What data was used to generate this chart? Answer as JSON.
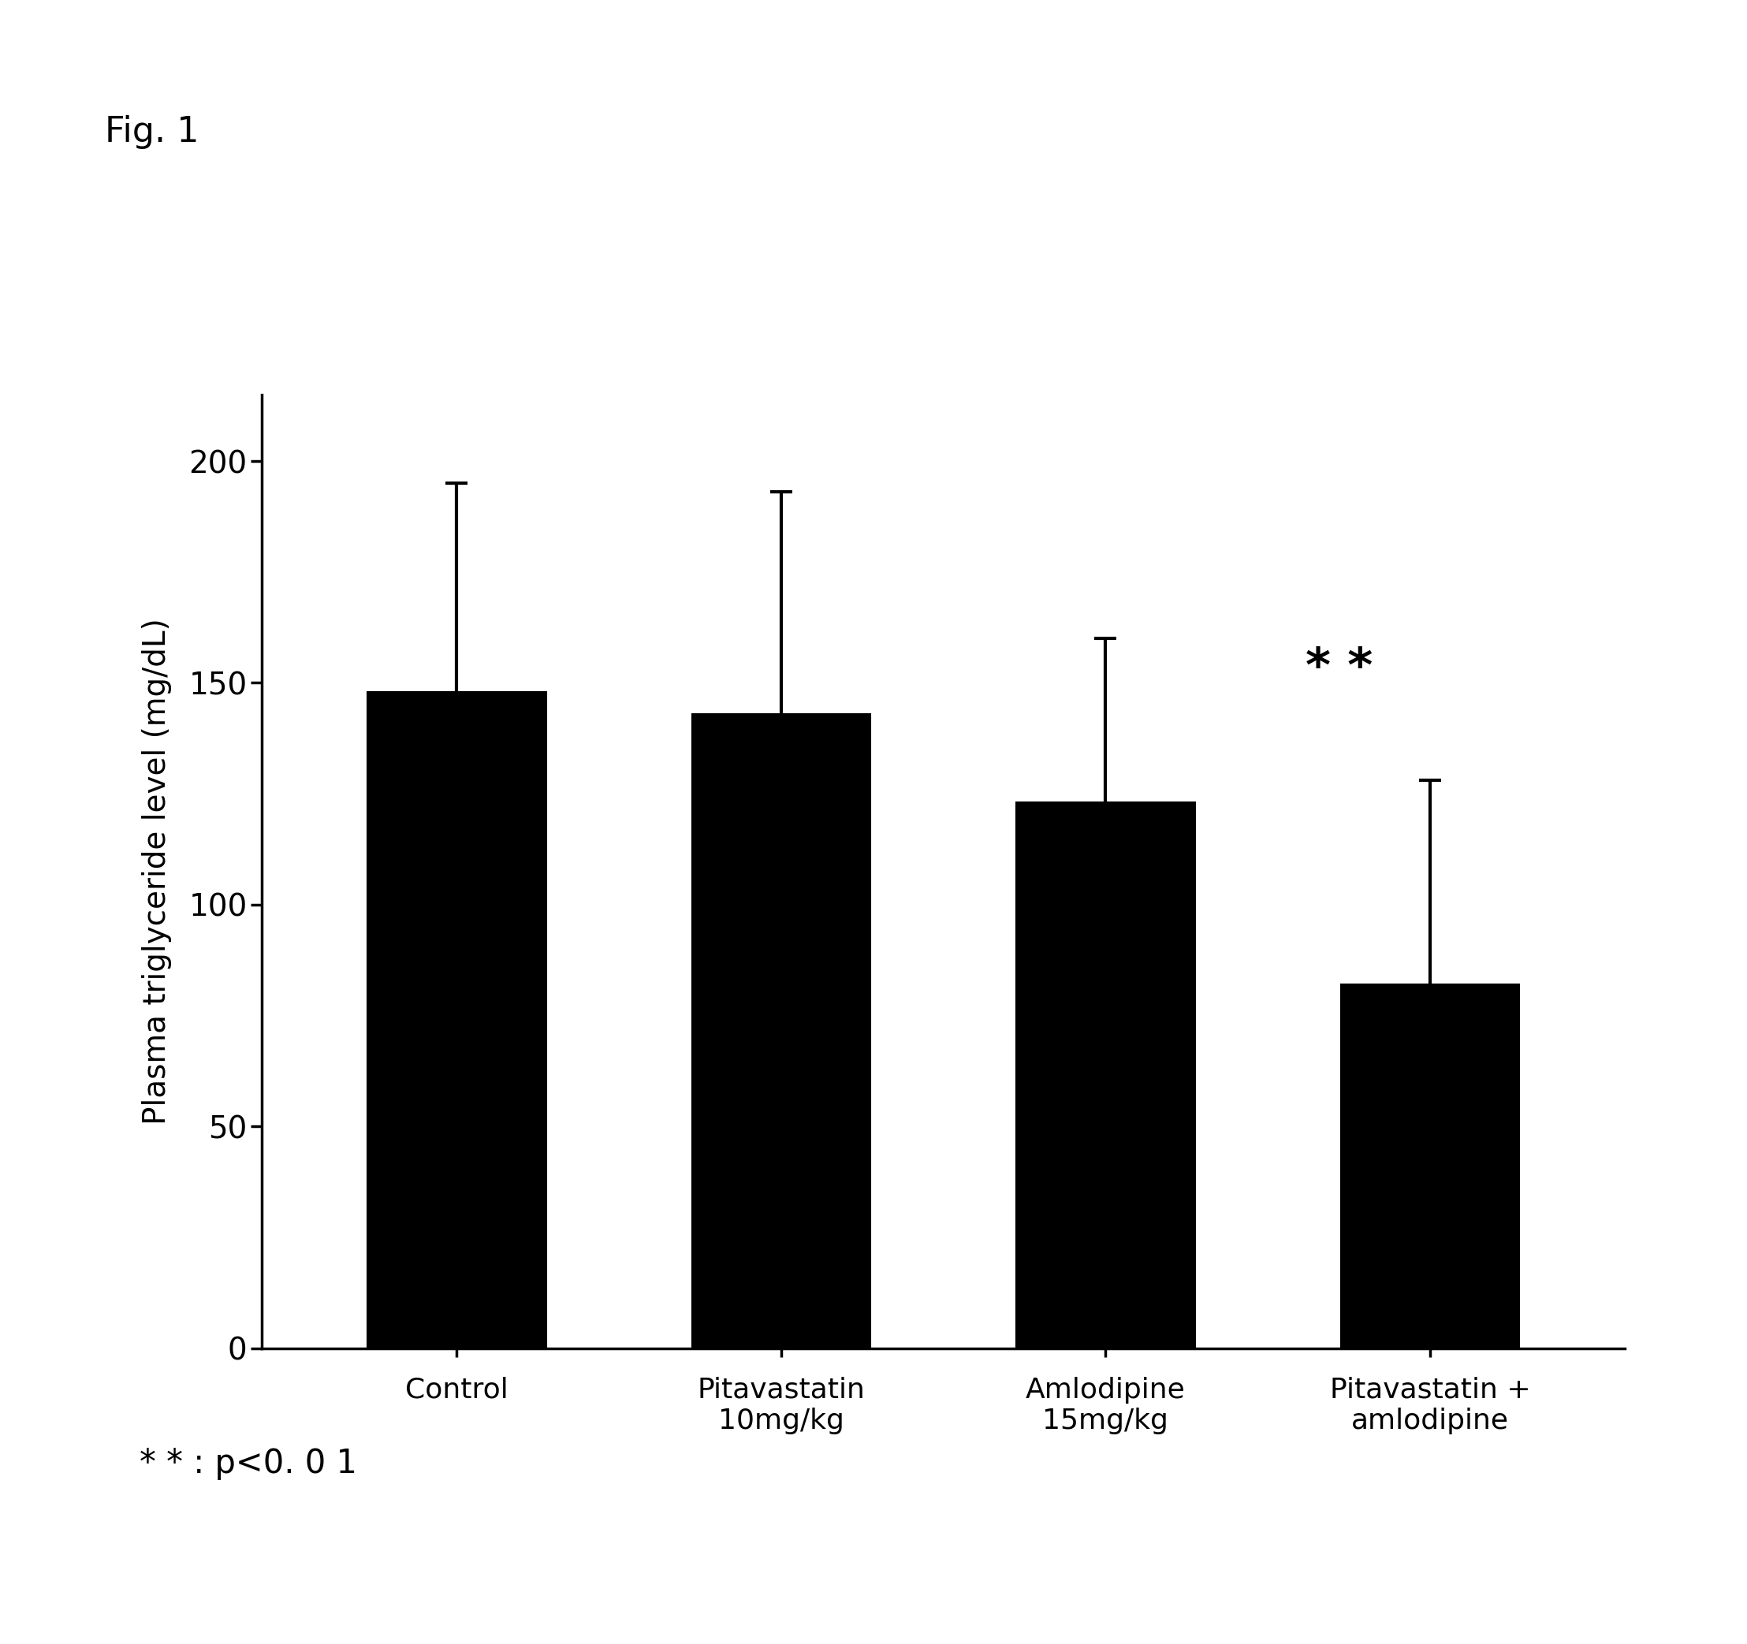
{
  "categories": [
    "Control",
    "Pitavastatin\n10mg/kg",
    "Amlodipine\n15mg/kg",
    "Pitavastatin +\namlodipine"
  ],
  "values": [
    148,
    143,
    123,
    82
  ],
  "errors_upper": [
    47,
    50,
    37,
    46
  ],
  "errors_lower": [
    47,
    50,
    18,
    17
  ],
  "bar_color": "#000000",
  "bar_width": 0.55,
  "xlim": [
    -0.6,
    3.6
  ],
  "ylim": [
    0,
    215
  ],
  "yticks": [
    0,
    50,
    100,
    150,
    200
  ],
  "ylabel": "Plasma triglyceride level (mg/dL)",
  "ylabel_fontsize": 28,
  "tick_fontsize": 28,
  "xtick_fontsize": 26,
  "significance_label": "* *",
  "fig_label": "Fig. 1",
  "background_color": "#ffffff",
  "capsize": 10,
  "elinewidth": 3.0,
  "bar_edge_color": "#000000",
  "bottom_annotation": "* * : p<0. 0 1"
}
